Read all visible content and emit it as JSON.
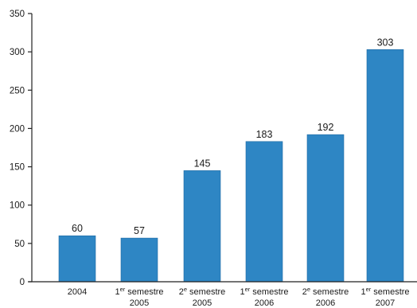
{
  "chart_data": {
    "type": "bar",
    "title": "",
    "xlabel": "",
    "ylabel": "",
    "ylim": [
      0,
      350
    ],
    "yticks": [
      0,
      50,
      100,
      150,
      200,
      250,
      300,
      350
    ],
    "grid": false,
    "bar_color": "#2e86c4",
    "categories": [
      {
        "line1": "2004",
        "sup": "",
        "line1_rest": "",
        "line2": ""
      },
      {
        "line1": "1",
        "sup": "er",
        "line1_rest": " semestre",
        "line2": "2005"
      },
      {
        "line1": "2",
        "sup": "e",
        "line1_rest": " semestre",
        "line2": "2005"
      },
      {
        "line1": "1",
        "sup": "er",
        "line1_rest": " semestre",
        "line2": "2006"
      },
      {
        "line1": "2",
        "sup": "e",
        "line1_rest": " semestre",
        "line2": "2006"
      },
      {
        "line1": "1",
        "sup": "er",
        "line1_rest": " semestre",
        "line2": "2007"
      }
    ],
    "values": [
      60,
      57,
      145,
      183,
      192,
      303
    ],
    "data_labels": [
      "60",
      "57",
      "145",
      "183",
      "192",
      "303"
    ]
  }
}
